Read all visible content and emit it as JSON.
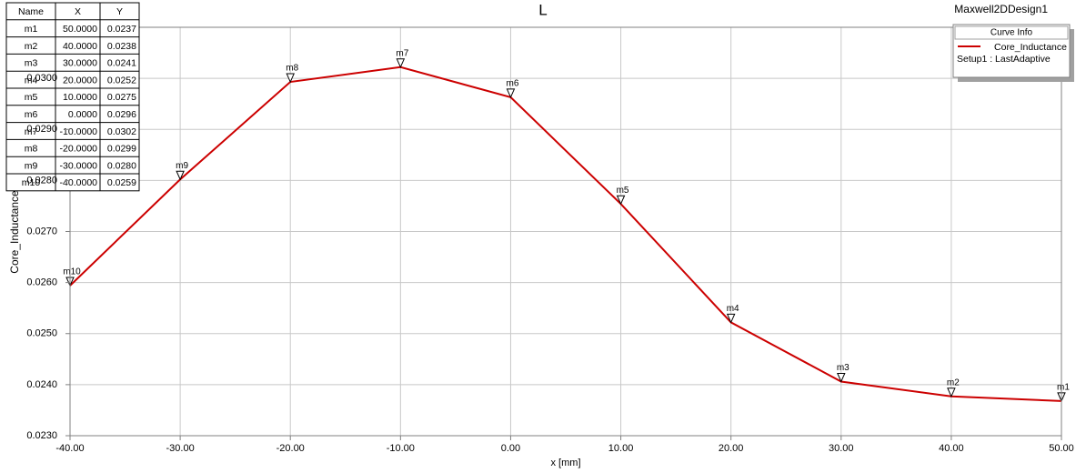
{
  "chart_data": {
    "type": "line",
    "title": "L",
    "design_name": "Maxwell2DDesign1",
    "xlabel": "x [mm]",
    "ylabel": "Core_Inductance",
    "legend_title": "Curve Info",
    "legend_note": "Setup1 : LastAdaptive",
    "legend": "upper right",
    "x": [
      -40,
      -30,
      -20,
      -10,
      0,
      10,
      20,
      30,
      40,
      50
    ],
    "series": [
      {
        "name": "Core_Inductance",
        "color": "#cc0000",
        "values": [
          0.02594,
          0.02802,
          0.02993,
          0.03022,
          0.02963,
          0.02754,
          0.02522,
          0.02406,
          0.02377,
          0.02368
        ],
        "marker_labels": [
          "m10",
          "m9",
          "m8",
          "m7",
          "m6",
          "m5",
          "m4",
          "m3",
          "m2",
          "m1"
        ]
      }
    ],
    "xlim": [
      -40,
      50
    ],
    "xticks": [
      {
        "value": -40,
        "label": "-40.00"
      },
      {
        "value": -30,
        "label": "-30.00"
      },
      {
        "value": -20,
        "label": "-20.00"
      },
      {
        "value": -10,
        "label": "-10.00"
      },
      {
        "value": 0,
        "label": "0.00"
      },
      {
        "value": 10,
        "label": "10.00"
      },
      {
        "value": 20,
        "label": "20.00"
      },
      {
        "value": 30,
        "label": "30.00"
      },
      {
        "value": 40,
        "label": "40.00"
      },
      {
        "value": 50,
        "label": "50.00"
      }
    ],
    "ylim": [
      0.023,
      0.031
    ],
    "yticks": [
      {
        "value": 0.023,
        "label": "0.0230"
      },
      {
        "value": 0.024,
        "label": "0.0240"
      },
      {
        "value": 0.025,
        "label": "0.0250"
      },
      {
        "value": 0.026,
        "label": "0.0260"
      },
      {
        "value": 0.027,
        "label": "0.0270"
      },
      {
        "value": 0.028,
        "label": "0.0280"
      },
      {
        "value": 0.029,
        "label": "0.0290"
      },
      {
        "value": 0.03,
        "label": "0.0300"
      }
    ],
    "grid": true,
    "marker_table": {
      "columns": [
        "Name",
        "X",
        "Y"
      ],
      "rows": [
        [
          "m1",
          "50.0000",
          "0.0237"
        ],
        [
          "m2",
          "40.0000",
          "0.0238"
        ],
        [
          "m3",
          "30.0000",
          "0.0241"
        ],
        [
          "m4",
          "20.0000",
          "0.0252"
        ],
        [
          "m5",
          "10.0000",
          "0.0275"
        ],
        [
          "m6",
          "0.0000",
          "0.0296"
        ],
        [
          "m7",
          "-10.0000",
          "0.0302"
        ],
        [
          "m8",
          "-20.0000",
          "0.0299"
        ],
        [
          "m9",
          "-30.0000",
          "0.0280"
        ],
        [
          "m10",
          "-40.0000",
          "0.0259"
        ]
      ]
    }
  }
}
